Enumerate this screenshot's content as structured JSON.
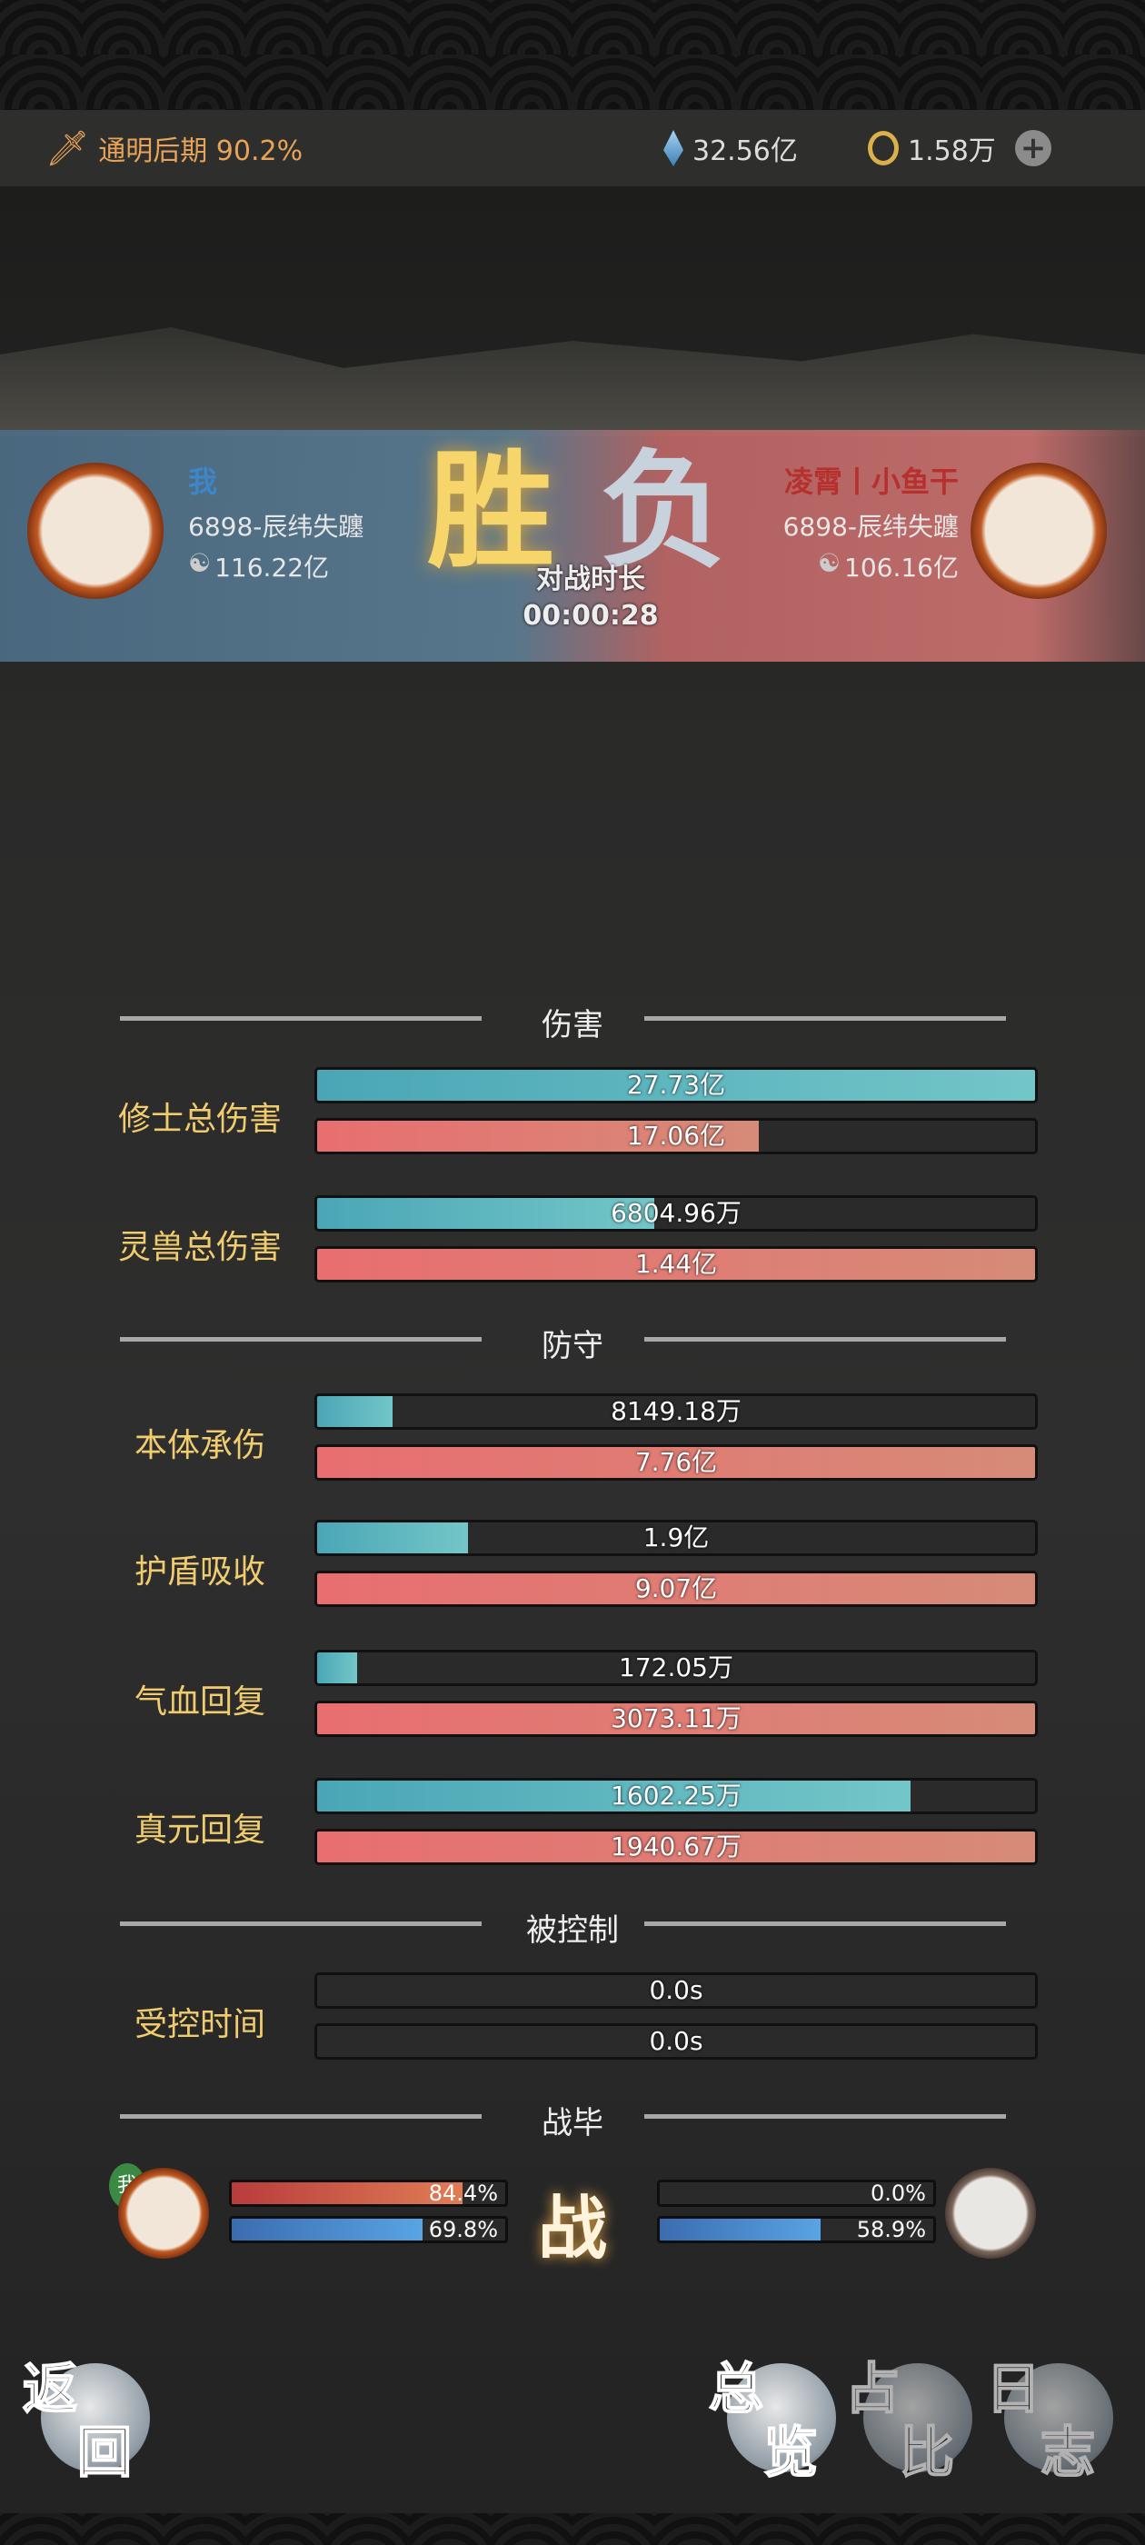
{
  "topbar": {
    "realm": "通明后期 90.2%",
    "spirit_stones": "32.56亿",
    "currency": "1.58万",
    "icons": [
      "sword-icon",
      "crystal-icon",
      "coin-icon",
      "plus-icon"
    ]
  },
  "result": {
    "win": "胜",
    "lose": "负",
    "duration_label": "对战时长",
    "duration": "00:00:28"
  },
  "me": {
    "name": "我",
    "server": "6898-辰纬失躔",
    "power": "116.22亿",
    "tag": "我"
  },
  "enemy": {
    "name": "凌霄丨小鱼干",
    "server": "6898-辰纬失躔",
    "power": "106.16亿"
  },
  "sections": {
    "damage": "伤害",
    "defense": "防守",
    "control": "被控制",
    "end": "战毕"
  },
  "rows": [
    {
      "label": "修士总伤害",
      "mine": "27.73亿",
      "enemy": "17.06亿",
      "mine_fill": 1.0,
      "enemy_fill": 0.615
    },
    {
      "label": "灵兽总伤害",
      "mine": "6804.96万",
      "enemy": "1.44亿",
      "mine_fill": 0.47,
      "enemy_fill": 1.0
    },
    {
      "label": "本体承伤",
      "mine": "8149.18万",
      "enemy": "7.76亿",
      "mine_fill": 0.105,
      "enemy_fill": 1.0
    },
    {
      "label": "护盾吸收",
      "mine": "1.9亿",
      "enemy": "9.07亿",
      "mine_fill": 0.21,
      "enemy_fill": 1.0
    },
    {
      "label": "气血回复",
      "mine": "172.05万",
      "enemy": "3073.11万",
      "mine_fill": 0.056,
      "enemy_fill": 1.0
    },
    {
      "label": "真元回复",
      "mine": "1602.25万",
      "enemy": "1940.67万",
      "mine_fill": 0.826,
      "enemy_fill": 1.0
    },
    {
      "label": "受控时间",
      "mine": "0.0s",
      "enemy": "0.0s",
      "mine_fill": 0,
      "enemy_fill": 0
    }
  ],
  "end_state": {
    "me_hp": "84.4%",
    "me_mp": "69.8%",
    "enemy_hp": "0.0%",
    "enemy_mp": "58.9%",
    "me_hp_fill": 0.844,
    "me_mp_fill": 0.698,
    "enemy_hp_fill": 0,
    "enemy_mp_fill": 0.589,
    "center": "战"
  },
  "buttons": {
    "back": [
      "返",
      "回"
    ],
    "overview": [
      "总",
      "览"
    ],
    "ratio": [
      "占",
      "比"
    ],
    "log": [
      "日",
      "志"
    ]
  }
}
